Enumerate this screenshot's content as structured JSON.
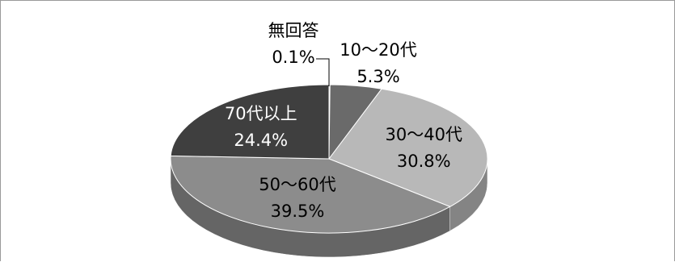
{
  "chart_data": {
    "type": "pie",
    "title": "",
    "style": "3d-exploded-none",
    "slices": [
      {
        "label": "無回答",
        "value": 0.1,
        "display": "0.1%",
        "color": "#5a5a5a",
        "label_color": "#000000"
      },
      {
        "label": "10〜20代",
        "value": 5.3,
        "display": "5.3%",
        "color": "#6a6a6a",
        "label_color": "#000000"
      },
      {
        "label": "30〜40代",
        "value": 30.8,
        "display": "30.8%",
        "color": "#b8b8b8",
        "label_color": "#000000"
      },
      {
        "label": "50〜60代",
        "value": 39.5,
        "display": "39.5%",
        "color": "#8c8c8c",
        "label_color": "#000000"
      },
      {
        "label": "70代以上",
        "value": 24.4,
        "display": "24.4%",
        "color": "#3f3f3f",
        "label_color": "#ffffff"
      }
    ]
  }
}
